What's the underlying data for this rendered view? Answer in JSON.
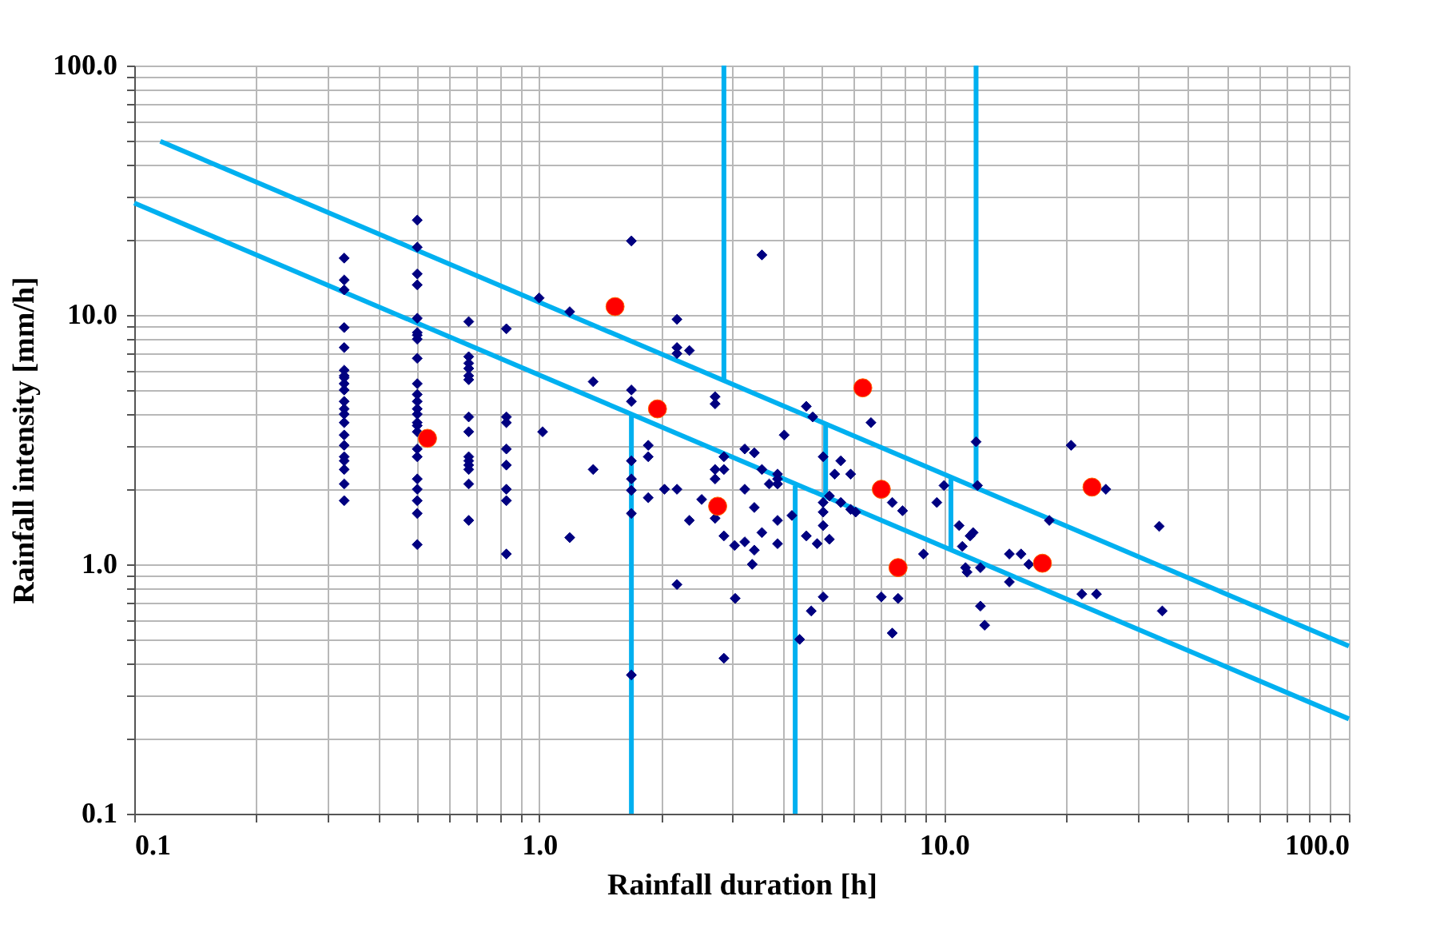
{
  "chart_data": {
    "type": "scatter",
    "xlabel": "Rainfall duration [h]",
    "ylabel": "Rainfall intensity [mm/h]",
    "log": "xy",
    "grid": true,
    "xlim": [
      0.1,
      100
    ],
    "ylim": [
      0.1,
      100
    ],
    "xticks": [
      0.1,
      {
        "value": 0.2,
        "label": null
      },
      {
        "value": 0.3,
        "label": null
      },
      {
        "value": 0.4,
        "label": null
      },
      {
        "value": 0.5,
        "label": null
      },
      {
        "value": 0.6,
        "label": null
      },
      {
        "value": 0.7,
        "label": null
      },
      {
        "value": 0.8,
        "label": null
      },
      {
        "value": 0.9,
        "label": null
      },
      {
        "value": 1,
        "label": "1.0"
      },
      {
        "value": 2,
        "label": null
      },
      {
        "value": 3,
        "label": null
      },
      {
        "value": 4,
        "label": null
      },
      {
        "value": 5,
        "label": null
      },
      {
        "value": 6,
        "label": null
      },
      {
        "value": 7,
        "label": null
      },
      {
        "value": 8,
        "label": null
      },
      {
        "value": 9,
        "label": null
      },
      {
        "value": 10,
        "label": "10.0"
      },
      {
        "value": 20,
        "label": null
      },
      {
        "value": 30,
        "label": null
      },
      {
        "value": 40,
        "label": null
      },
      {
        "value": 50,
        "label": null
      },
      {
        "value": 60,
        "label": null
      },
      {
        "value": 70,
        "label": null
      },
      {
        "value": 80,
        "label": null
      },
      {
        "value": 90,
        "label": null
      },
      {
        "value": 100,
        "label": "100.0"
      }
    ],
    "yticks": [
      0.1,
      {
        "value": 0.2,
        "label": null
      },
      {
        "value": 0.3,
        "label": null
      },
      {
        "value": 0.4,
        "label": null
      },
      {
        "value": 0.5,
        "label": null
      },
      {
        "value": 0.6,
        "label": null
      },
      {
        "value": 0.7,
        "label": null
      },
      {
        "value": 0.8,
        "label": null
      },
      {
        "value": 0.9,
        "label": null
      },
      {
        "value": 1,
        "label": "1.0"
      },
      {
        "value": 2,
        "label": null
      },
      {
        "value": 3,
        "label": null
      },
      {
        "value": 4,
        "label": null
      },
      {
        "value": 5,
        "label": null
      },
      {
        "value": 6,
        "label": null
      },
      {
        "value": 7,
        "label": null
      },
      {
        "value": 8,
        "label": null
      },
      {
        "value": 9,
        "label": null
      },
      {
        "value": 10,
        "label": "10.0"
      },
      {
        "value": 20,
        "label": null
      },
      {
        "value": 30,
        "label": null
      },
      {
        "value": 40,
        "label": null
      },
      {
        "value": 50,
        "label": null
      },
      {
        "value": 60,
        "label": null
      },
      {
        "value": 70,
        "label": null
      },
      {
        "value": 80,
        "label": null
      },
      {
        "value": 90,
        "label": null
      },
      {
        "value": 100,
        "label": "100.0"
      }
    ],
    "series": [
      {
        "type": "line",
        "color": "#00b0f0",
        "marker": "none",
        "x": [
          0.116,
          100
        ],
        "values": [
          49.7,
          0.47
        ]
      },
      {
        "type": "line",
        "color": "#00b0f0",
        "marker": "none",
        "x": [
          0.1,
          100
        ],
        "values": [
          28.1,
          0.24
        ]
      },
      {
        "type": "line",
        "color": "#00b0f0",
        "marker": "none",
        "x": [
          2.86,
          2.86
        ],
        "values": [
          100,
          5.5
        ]
      },
      {
        "type": "line",
        "color": "#00b0f0",
        "marker": "none",
        "x": [
          12.0,
          12.0
        ],
        "values": [
          100,
          2.07
        ]
      },
      {
        "type": "line",
        "color": "#00b0f0",
        "marker": "none",
        "x": [
          1.69,
          1.69
        ],
        "values": [
          4.0,
          0.1
        ]
      },
      {
        "type": "line",
        "color": "#00b0f0",
        "marker": "none",
        "x": [
          4.29,
          4.29
        ],
        "values": [
          2.07,
          0.1
        ]
      },
      {
        "type": "line",
        "color": "#00b0f0",
        "marker": "none",
        "x": [
          5.1,
          5.1
        ],
        "values": [
          3.7,
          1.9
        ]
      },
      {
        "type": "line",
        "color": "#00b0f0",
        "marker": "none",
        "x": [
          10.4,
          10.4
        ],
        "values": [
          2.2,
          1.16
        ]
      },
      {
        "color": "#000080",
        "marker": "diamond",
        "x": [
          0.33,
          0.33,
          0.33,
          0.33,
          0.33,
          0.33,
          0.33,
          0.33,
          0.33,
          0.33,
          0.33,
          0.33,
          0.33,
          0.33,
          0.33,
          0.33,
          0.33,
          0.33,
          0.33,
          0.33,
          0.33,
          0.5,
          0.5,
          0.5,
          0.5,
          0.5,
          0.5,
          0.5,
          0.5,
          0.5,
          0.5,
          0.5,
          0.5,
          0.5,
          0.5,
          0.5,
          0.5,
          0.5,
          0.5,
          0.5,
          0.5,
          0.5,
          0.5,
          0.5,
          0.5,
          0.67,
          0.67,
          0.67,
          0.67,
          0.67,
          0.67,
          0.67,
          0.67,
          0.67,
          0.67,
          0.67,
          0.67,
          0.67,
          0.67,
          0.83,
          0.83,
          0.83,
          0.83,
          0.83,
          0.83,
          0.83,
          0.83,
          1.0,
          1.19,
          1.69,
          2.19,
          2.19,
          2.19,
          2.35,
          1.36,
          1.69,
          1.69,
          1.02,
          1.36,
          1.69,
          1.69,
          1.69,
          1.69,
          1.69,
          1.86,
          1.86,
          1.86,
          2.04,
          2.19,
          2.35,
          1.19,
          2.19,
          3.55,
          2.72,
          2.72,
          4.57,
          4.74,
          6.6,
          4.03,
          2.86,
          3.22,
          3.4,
          2.72,
          2.72,
          2.86,
          3.55,
          3.88,
          3.88,
          3.7,
          3.88,
          3.22,
          2.52,
          2.72,
          3.4,
          2.86,
          3.04,
          3.22,
          3.4,
          3.55,
          3.88,
          3.88,
          3.36,
          4.21,
          5.03,
          5.37,
          5.56,
          5.88,
          5.03,
          5.21,
          5.03,
          5.56,
          5.88,
          6.05,
          4.57,
          4.86,
          5.21,
          5.03,
          7.45,
          7.9,
          5.03,
          4.7,
          4.4,
          3.05,
          2.86,
          7.0,
          7.7,
          7.45,
          9.6,
          10.0,
          12.0,
          12.1,
          10.9,
          11.6,
          11.8,
          11.1,
          11.3,
          11.4,
          12.3,
          12.3,
          12.6,
          8.9,
          14.5,
          15.5,
          14.5,
          16.2,
          18.2,
          20.6,
          25.1,
          34.0,
          21.9,
          23.8,
          34.6
        ],
        "values": [
          16.9,
          13.8,
          12.6,
          8.9,
          7.4,
          6.0,
          5.7,
          5.6,
          5.3,
          5.0,
          4.5,
          4.2,
          4.0,
          3.7,
          3.3,
          3.0,
          2.7,
          2.6,
          2.4,
          2.1,
          1.8,
          24,
          18.7,
          14.6,
          13.2,
          9.7,
          8.5,
          8.3,
          8.0,
          6.7,
          5.3,
          4.8,
          4.5,
          4.2,
          4.0,
          3.7,
          3.6,
          3.4,
          2.9,
          2.7,
          2.2,
          2.0,
          1.8,
          1.6,
          1.2,
          9.4,
          6.8,
          6.4,
          6.1,
          5.7,
          5.5,
          3.9,
          3.4,
          2.7,
          2.6,
          2.5,
          2.4,
          2.1,
          1.5,
          8.8,
          3.9,
          3.7,
          2.9,
          2.5,
          2.0,
          1.8,
          1.1,
          11.7,
          10.3,
          19.8,
          9.6,
          7.4,
          7.0,
          7.2,
          5.4,
          5.0,
          4.5,
          3.4,
          2.4,
          2.6,
          2.2,
          1.98,
          1.6,
          0.36,
          3.0,
          2.7,
          1.85,
          2.0,
          2.0,
          1.5,
          1.28,
          0.83,
          17.4,
          4.7,
          4.4,
          4.3,
          3.9,
          3.7,
          3.3,
          2.7,
          2.9,
          2.8,
          2.4,
          2.2,
          2.4,
          2.4,
          2.3,
          2.2,
          2.1,
          2.1,
          2.0,
          1.82,
          1.53,
          1.69,
          1.3,
          1.19,
          1.23,
          1.14,
          1.34,
          1.5,
          1.21,
          1.0,
          1.57,
          2.7,
          2.3,
          2.6,
          2.3,
          1.77,
          1.88,
          1.62,
          1.77,
          1.66,
          1.62,
          1.3,
          1.21,
          1.26,
          1.43,
          1.77,
          1.64,
          0.74,
          0.65,
          0.5,
          0.73,
          0.42,
          0.74,
          0.73,
          0.53,
          1.77,
          2.07,
          3.1,
          2.07,
          1.43,
          1.3,
          1.34,
          1.18,
          0.97,
          0.93,
          0.97,
          0.68,
          0.57,
          1.1,
          1.1,
          1.1,
          0.85,
          1.0,
          1.5,
          3.0,
          2.0,
          1.42,
          0.76,
          0.76,
          0.65
        ]
      },
      {
        "color": "#ff0000",
        "marker": "circle",
        "x": [
          1.54,
          1.96,
          0.53,
          6.3,
          7.0,
          7.7,
          2.76,
          17.5,
          23.2
        ],
        "values": [
          10.8,
          4.2,
          3.2,
          5.1,
          2.0,
          0.97,
          1.71,
          1.01,
          2.04
        ]
      }
    ]
  }
}
